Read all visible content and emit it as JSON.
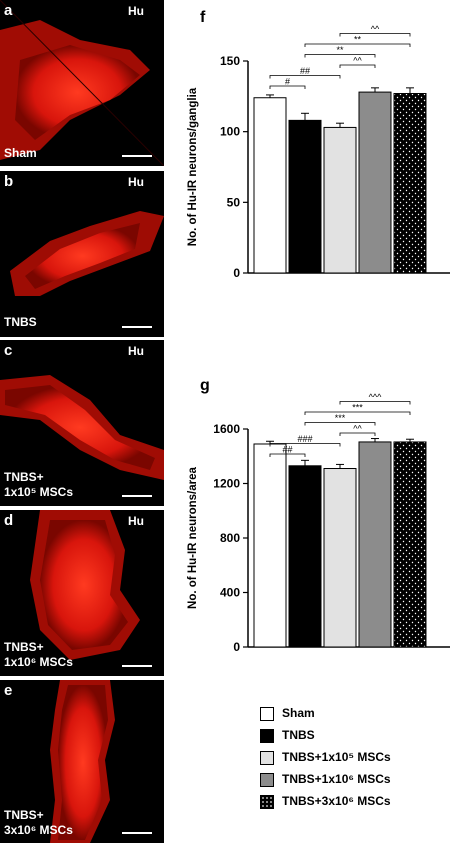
{
  "colors": {
    "sham": "#ffffff",
    "tnbs": "#000000",
    "msc1e5": "#e2e2e2",
    "msc1e6": "#8c8c8c",
    "msc3e6": "#000000",
    "red": "#e41a10"
  },
  "micrographs": [
    {
      "letter": "a",
      "marker": "Hu",
      "label_lines": [
        "Sham"
      ]
    },
    {
      "letter": "b",
      "marker": "Hu",
      "label_lines": [
        "TNBS"
      ]
    },
    {
      "letter": "c",
      "marker": "Hu",
      "label_lines": [
        "TNBS+",
        "1x10⁵ MSCs"
      ]
    },
    {
      "letter": "d",
      "marker": "Hu",
      "label_lines": [
        "TNBS+",
        "1x10⁶ MSCs"
      ]
    },
    {
      "letter": "e",
      "marker": "",
      "label_lines": [
        "TNBS+",
        "3x10⁶ MSCs"
      ]
    }
  ],
  "legend": [
    {
      "text": "Sham",
      "pattern": "sham"
    },
    {
      "text": "TNBS",
      "pattern": "tnbs"
    },
    {
      "text": "TNBS+1x10⁵ MSCs",
      "pattern": "msc1e5"
    },
    {
      "text": "TNBS+1x10⁶ MSCs",
      "pattern": "msc1e6"
    },
    {
      "text": "TNBS+3x10⁶ MSCs",
      "pattern": "msc3e6"
    }
  ],
  "chart_data": [
    {
      "panel": "f",
      "type": "bar",
      "ylabel": "No. of Hu-IR neurons/ganglia",
      "ylim": [
        0,
        150
      ],
      "yticks": [
        0,
        50,
        100,
        150
      ],
      "categories": [
        "Sham",
        "TNBS",
        "TNBS+1x10⁵ MSCs",
        "TNBS+1x10⁶ MSCs",
        "TNBS+3x10⁶ MSCs"
      ],
      "values": [
        124,
        108,
        103,
        128,
        127
      ],
      "errors": [
        2,
        5,
        3,
        3,
        4
      ],
      "significance": [
        {
          "from": 0,
          "to": 1,
          "label": "#"
        },
        {
          "from": 0,
          "to": 2,
          "label": "##"
        },
        {
          "from": 2,
          "to": 3,
          "label": "^^"
        },
        {
          "from": 1,
          "to": 3,
          "label": "**"
        },
        {
          "from": 1,
          "to": 4,
          "label": "**"
        },
        {
          "from": 2,
          "to": 4,
          "label": "^^"
        }
      ]
    },
    {
      "panel": "g",
      "type": "bar",
      "ylabel": "No. of Hu-IR neurons/area",
      "ylim": [
        0,
        1600
      ],
      "yticks": [
        0,
        400,
        800,
        1200,
        1600
      ],
      "categories": [
        "Sham",
        "TNBS",
        "TNBS+1x10⁵ MSCs",
        "TNBS+1x10⁶ MSCs",
        "TNBS+3x10⁶ MSCs"
      ],
      "values": [
        1490,
        1330,
        1310,
        1505,
        1505
      ],
      "errors": [
        20,
        40,
        30,
        25,
        20
      ],
      "significance": [
        {
          "from": 0,
          "to": 1,
          "label": "##"
        },
        {
          "from": 0,
          "to": 2,
          "label": "###"
        },
        {
          "from": 2,
          "to": 3,
          "label": "^^"
        },
        {
          "from": 1,
          "to": 3,
          "label": "***"
        },
        {
          "from": 1,
          "to": 4,
          "label": "***"
        },
        {
          "from": 2,
          "to": 4,
          "label": "^^^"
        }
      ]
    }
  ]
}
